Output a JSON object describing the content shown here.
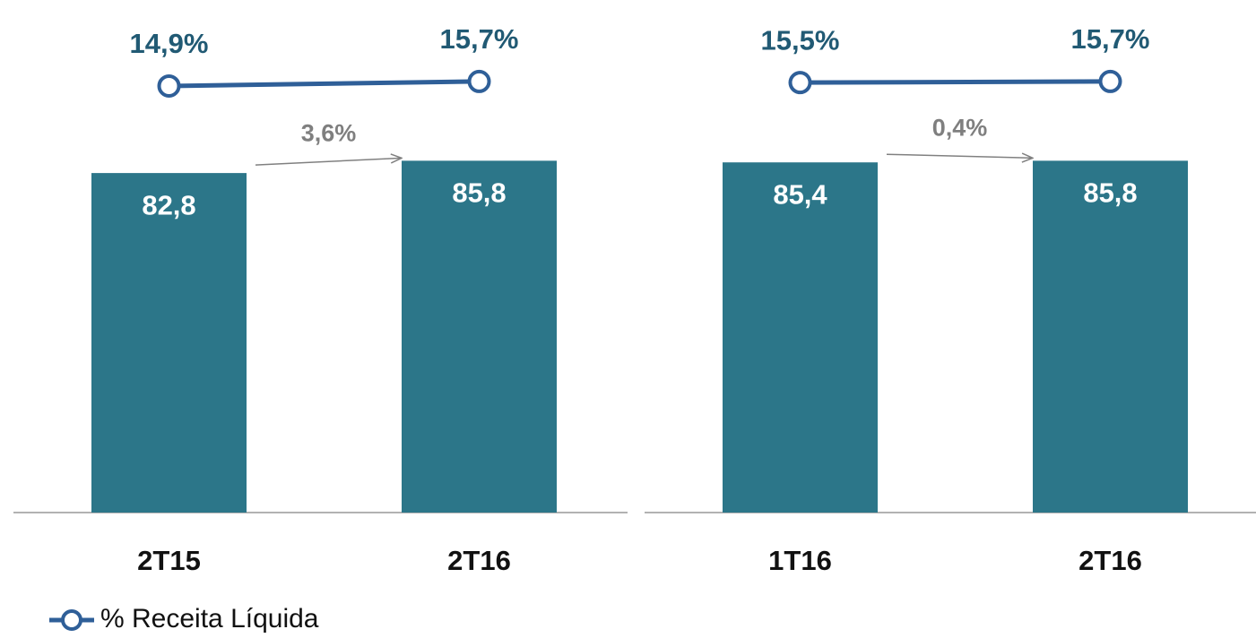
{
  "chart_data": [
    {
      "type": "bar",
      "categories": [
        "2T15",
        "2T16"
      ],
      "series": [
        {
          "color": "#2c7689",
          "values": [
            82.8,
            85.8
          ],
          "value_labels": [
            "82,8",
            "85,8"
          ]
        },
        {
          "name": "% Receita Líquida",
          "type": "line",
          "axis": "y2",
          "color": "#2f5f98",
          "values": [
            14.9,
            15.7
          ],
          "value_labels": [
            "14,9%",
            "15,7%"
          ]
        }
      ],
      "annotation": "3,6%",
      "ylim": [
        0,
        125
      ],
      "y2lim": [
        -60,
        30
      ]
    },
    {
      "type": "bar",
      "categories": [
        "1T16",
        "2T16"
      ],
      "series": [
        {
          "color": "#2c7689",
          "values": [
            85.4,
            85.8
          ],
          "value_labels": [
            "85,4",
            "85,8"
          ]
        },
        {
          "type": "line",
          "axis": "y2",
          "color": "#2f5f98",
          "values": [
            15.5,
            15.7
          ],
          "value_labels": [
            "15,5%",
            "15,7%"
          ]
        }
      ],
      "annotation": "0,4%",
      "ylim": [
        0,
        125
      ],
      "y2lim": [
        -60,
        30
      ]
    }
  ]
}
